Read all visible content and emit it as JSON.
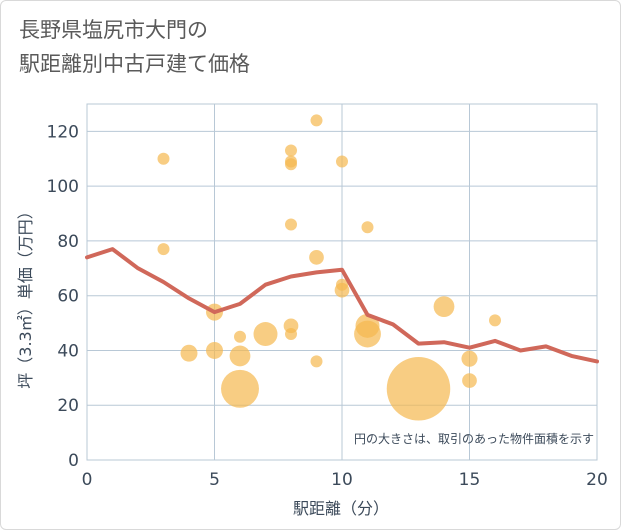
{
  "colors": {
    "bubble": "#f5b84e",
    "line": "#d0685a",
    "grid": "#b8c8d6",
    "axis_text": "#3c4a5a",
    "title_text": "#5a5a5a"
  },
  "chart_data": {
    "type": "scatter",
    "title": "長野県塩尻市大門の\n駅距離別中古戸建て価格",
    "xlabel": "駅距離（分）",
    "ylabel": "坪（3.3㎡）単価（万円）",
    "xlim": [
      0,
      20
    ],
    "ylim": [
      0,
      130
    ],
    "xticks": [
      0,
      5,
      10,
      15,
      20
    ],
    "yticks": [
      0,
      20,
      40,
      60,
      80,
      100,
      120
    ],
    "grid": true,
    "annotation": "円の大きさは、取引のあった物件面積を示す",
    "bubbles": [
      {
        "x": 3,
        "y": 110,
        "size": 1
      },
      {
        "x": 3,
        "y": 77,
        "size": 1
      },
      {
        "x": 4,
        "y": 39,
        "size": 2
      },
      {
        "x": 5,
        "y": 54,
        "size": 2
      },
      {
        "x": 5,
        "y": 40,
        "size": 2
      },
      {
        "x": 6,
        "y": 45,
        "size": 1
      },
      {
        "x": 6,
        "y": 38,
        "size": 3
      },
      {
        "x": 6,
        "y": 26,
        "size": 10
      },
      {
        "x": 7,
        "y": 46,
        "size": 4
      },
      {
        "x": 8,
        "y": 113,
        "size": 1
      },
      {
        "x": 8,
        "y": 109,
        "size": 1
      },
      {
        "x": 8,
        "y": 108,
        "size": 1
      },
      {
        "x": 8,
        "y": 86,
        "size": 1
      },
      {
        "x": 8,
        "y": 49,
        "size": 1.5
      },
      {
        "x": 8,
        "y": 46,
        "size": 1
      },
      {
        "x": 9,
        "y": 124,
        "size": 1
      },
      {
        "x": 9,
        "y": 74,
        "size": 1.5
      },
      {
        "x": 9,
        "y": 36,
        "size": 1
      },
      {
        "x": 10,
        "y": 109,
        "size": 1
      },
      {
        "x": 10,
        "y": 64,
        "size": 1
      },
      {
        "x": 10,
        "y": 62,
        "size": 1.5
      },
      {
        "x": 11,
        "y": 85,
        "size": 1
      },
      {
        "x": 11,
        "y": 49,
        "size": 4
      },
      {
        "x": 11,
        "y": 46,
        "size": 5
      },
      {
        "x": 13,
        "y": 26,
        "size": 28
      },
      {
        "x": 14,
        "y": 56,
        "size": 3
      },
      {
        "x": 15,
        "y": 37,
        "size": 1.8
      },
      {
        "x": 15,
        "y": 29,
        "size": 1.5
      },
      {
        "x": 16,
        "y": 51,
        "size": 1
      }
    ],
    "series": [
      {
        "x": [
          0,
          1,
          2,
          3,
          4,
          5,
          6,
          7,
          8,
          9,
          10,
          11,
          12,
          13,
          14,
          15,
          16,
          17,
          18,
          19,
          20
        ],
        "values": [
          74,
          77,
          70,
          65,
          59,
          54,
          57,
          64,
          67,
          68.5,
          69.5,
          53,
          49.5,
          42.5,
          43,
          41,
          43.5,
          40,
          41.5,
          38,
          36
        ]
      }
    ]
  }
}
